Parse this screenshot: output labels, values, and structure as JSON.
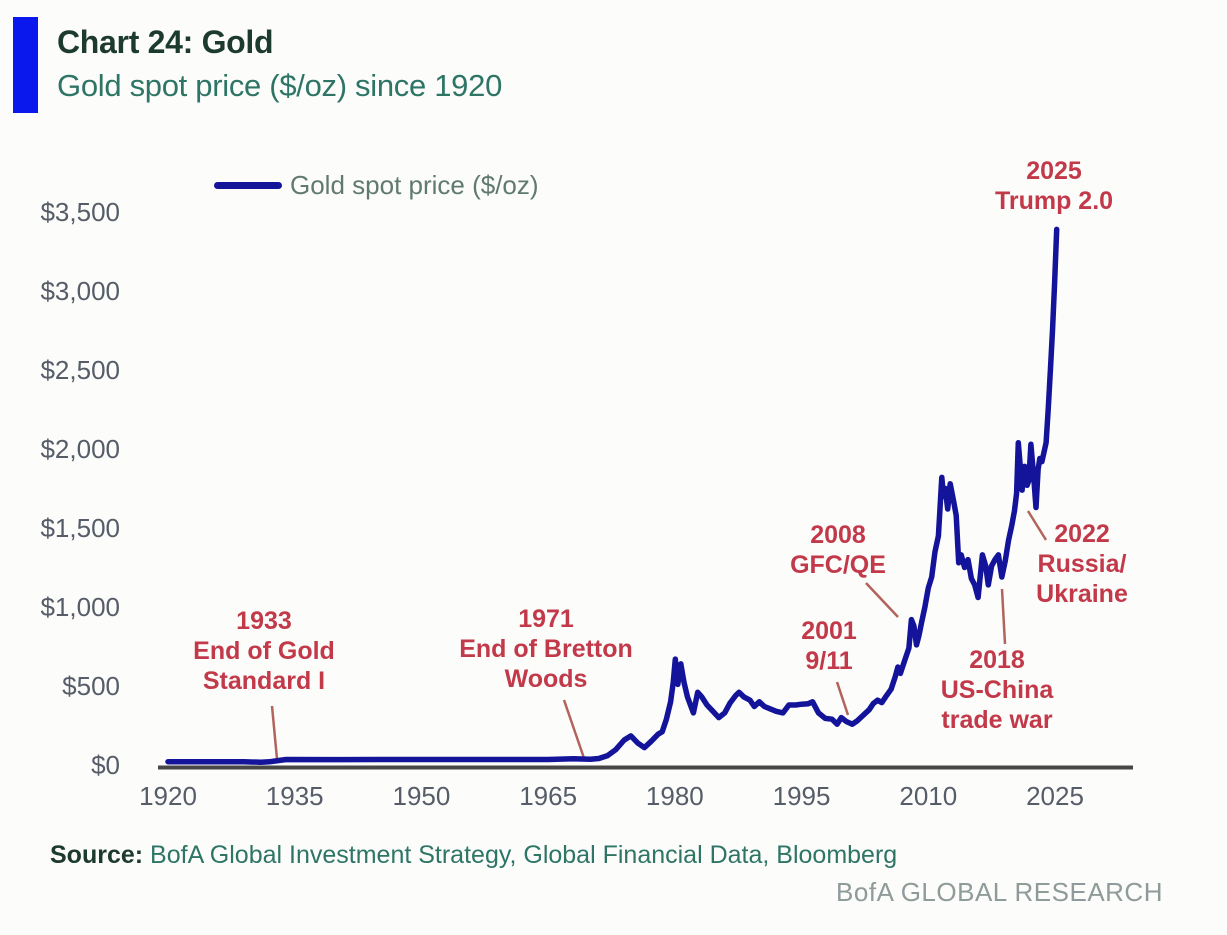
{
  "header": {
    "title": "Chart 24: Gold",
    "subtitle": "Gold spot price ($/oz) since 1920"
  },
  "footer": {
    "source_label": "Source:",
    "source_text": " BofA Global Investment Strategy, Global Financial Data, Bloomberg",
    "brand": "BofA GLOBAL RESEARCH"
  },
  "colors": {
    "accent": "#0a18ee",
    "line": "#14149b",
    "red": "#c2394a",
    "title": "#1d3a2e",
    "teal": "#2e7566",
    "tick": "#565d68",
    "axis": "#474747",
    "leader": "#b2645c",
    "brand": "#8f9a9b",
    "legend_text": "#617a70"
  },
  "chart_data": {
    "type": "line",
    "title": "Chart 24: Gold",
    "subtitle": "Gold spot price ($/oz) since 1920",
    "xlabel": "",
    "ylabel": "Gold spot price ($/oz)",
    "xlim": [
      1919,
      2034
    ],
    "ylim": [
      0,
      3700
    ],
    "grid": false,
    "legend_position": "top-left",
    "x_ticks": [
      1920,
      1935,
      1950,
      1965,
      1980,
      1995,
      2010,
      2025
    ],
    "y_ticks": [
      {
        "value": 0,
        "label": "$0"
      },
      {
        "value": 500,
        "label": "$500"
      },
      {
        "value": 1000,
        "label": "$1,000"
      },
      {
        "value": 1500,
        "label": "$1,500"
      },
      {
        "value": 2000,
        "label": "$2,000"
      },
      {
        "value": 2500,
        "label": "$2,500"
      },
      {
        "value": 3000,
        "label": "$3,000"
      },
      {
        "value": 3500,
        "label": "$3,500"
      }
    ],
    "series": [
      {
        "name": "Gold spot price ($/oz)",
        "color": "#14149b",
        "points": [
          [
            1920,
            21
          ],
          [
            1925,
            21
          ],
          [
            1929,
            21
          ],
          [
            1931,
            17
          ],
          [
            1932,
            20
          ],
          [
            1933,
            28
          ],
          [
            1934,
            35
          ],
          [
            1940,
            34
          ],
          [
            1945,
            35
          ],
          [
            1950,
            35
          ],
          [
            1955,
            35
          ],
          [
            1960,
            35
          ],
          [
            1965,
            35
          ],
          [
            1968,
            39
          ],
          [
            1970,
            36
          ],
          [
            1971,
            41
          ],
          [
            1972,
            58
          ],
          [
            1973,
            97
          ],
          [
            1974,
            158
          ],
          [
            1974.8,
            184
          ],
          [
            1975.6,
            139
          ],
          [
            1976.4,
            110
          ],
          [
            1977.2,
            150
          ],
          [
            1978,
            194
          ],
          [
            1978.5,
            210
          ],
          [
            1979,
            290
          ],
          [
            1979.5,
            400
          ],
          [
            1979.8,
            520
          ],
          [
            1980.05,
            670
          ],
          [
            1980.35,
            510
          ],
          [
            1980.7,
            640
          ],
          [
            1981.1,
            520
          ],
          [
            1981.5,
            430
          ],
          [
            1982.2,
            330
          ],
          [
            1982.7,
            460
          ],
          [
            1983.2,
            430
          ],
          [
            1983.8,
            380
          ],
          [
            1984.5,
            340
          ],
          [
            1985.2,
            300
          ],
          [
            1985.9,
            330
          ],
          [
            1986.5,
            390
          ],
          [
            1987.2,
            440
          ],
          [
            1987.6,
            460
          ],
          [
            1988.2,
            430
          ],
          [
            1988.9,
            410
          ],
          [
            1989.4,
            370
          ],
          [
            1990,
            400
          ],
          [
            1990.6,
            370
          ],
          [
            1991.3,
            355
          ],
          [
            1992,
            340
          ],
          [
            1992.8,
            330
          ],
          [
            1993.5,
            380
          ],
          [
            1994.3,
            380
          ],
          [
            1995,
            385
          ],
          [
            1995.8,
            388
          ],
          [
            1996.3,
            400
          ],
          [
            1997,
            330
          ],
          [
            1997.8,
            295
          ],
          [
            1998.6,
            290
          ],
          [
            1999.2,
            258
          ],
          [
            1999.7,
            300
          ],
          [
            2000.3,
            275
          ],
          [
            2001,
            258
          ],
          [
            2001.6,
            280
          ],
          [
            2002.3,
            315
          ],
          [
            2003,
            350
          ],
          [
            2003.5,
            390
          ],
          [
            2004,
            410
          ],
          [
            2004.5,
            395
          ],
          [
            2005,
            435
          ],
          [
            2005.6,
            480
          ],
          [
            2006.1,
            560
          ],
          [
            2006.4,
            620
          ],
          [
            2006.7,
            580
          ],
          [
            2007.2,
            660
          ],
          [
            2007.7,
            740
          ],
          [
            2008,
            920
          ],
          [
            2008.3,
            880
          ],
          [
            2008.6,
            760
          ],
          [
            2008.9,
            820
          ],
          [
            2009.2,
            900
          ],
          [
            2009.6,
            1000
          ],
          [
            2010,
            1120
          ],
          [
            2010.4,
            1190
          ],
          [
            2010.8,
            1350
          ],
          [
            2011.2,
            1450
          ],
          [
            2011.6,
            1820
          ],
          [
            2011.8,
            1700
          ],
          [
            2012,
            1750
          ],
          [
            2012.3,
            1620
          ],
          [
            2012.6,
            1780
          ],
          [
            2013,
            1670
          ],
          [
            2013.3,
            1580
          ],
          [
            2013.6,
            1280
          ],
          [
            2013.9,
            1330
          ],
          [
            2014.3,
            1250
          ],
          [
            2014.7,
            1300
          ],
          [
            2015.1,
            1180
          ],
          [
            2015.5,
            1140
          ],
          [
            2015.9,
            1060
          ],
          [
            2016.4,
            1330
          ],
          [
            2016.8,
            1260
          ],
          [
            2017.1,
            1140
          ],
          [
            2017.5,
            1260
          ],
          [
            2017.9,
            1300
          ],
          [
            2018.3,
            1330
          ],
          [
            2018.7,
            1190
          ],
          [
            2019.1,
            1290
          ],
          [
            2019.5,
            1420
          ],
          [
            2019.9,
            1520
          ],
          [
            2020.2,
            1610
          ],
          [
            2020.45,
            1720
          ],
          [
            2020.65,
            2040
          ],
          [
            2020.9,
            1880
          ],
          [
            2021.1,
            1740
          ],
          [
            2021.4,
            1890
          ],
          [
            2021.7,
            1770
          ],
          [
            2021.9,
            1800
          ],
          [
            2022.15,
            2030
          ],
          [
            2022.45,
            1840
          ],
          [
            2022.75,
            1630
          ],
          [
            2023,
            1870
          ],
          [
            2023.2,
            1940
          ],
          [
            2023.45,
            1920
          ],
          [
            2023.7,
            1980
          ],
          [
            2023.95,
            2040
          ],
          [
            2024.2,
            2250
          ],
          [
            2024.45,
            2500
          ],
          [
            2024.7,
            2750
          ],
          [
            2024.95,
            3050
          ],
          [
            2025.2,
            3390
          ]
        ]
      }
    ],
    "annotations": [
      {
        "id": "a1933",
        "year": 1933,
        "text": "1933\nEnd of Gold\nStandard I"
      },
      {
        "id": "a1971",
        "year": 1971,
        "text": "1971\nEnd of Bretton\nWoods"
      },
      {
        "id": "a2001",
        "year": 2001,
        "text": "2001\n9/11"
      },
      {
        "id": "a2008",
        "year": 2008,
        "text": "2008\nGFC/QE"
      },
      {
        "id": "a2018",
        "year": 2018,
        "text": "2018\nUS-China\ntrade war"
      },
      {
        "id": "a2022",
        "year": 2022,
        "text": "2022\nRussia/\nUkraine"
      },
      {
        "id": "a2025",
        "year": 2025,
        "text": "2025\nTrump 2.0"
      }
    ]
  }
}
